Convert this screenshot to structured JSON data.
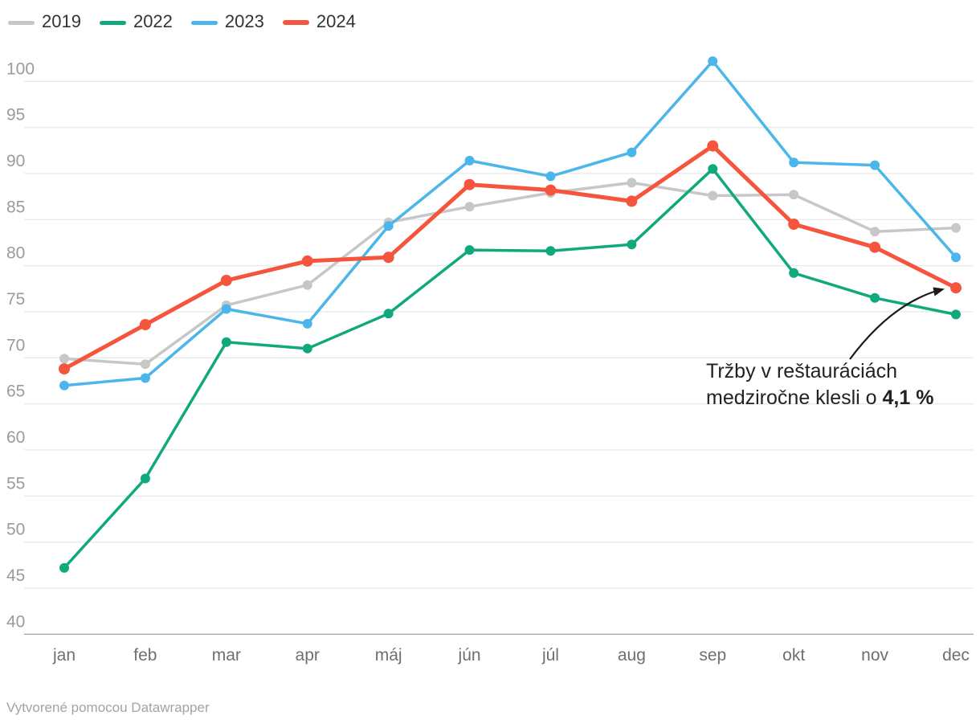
{
  "chart_data": {
    "type": "line",
    "title": "",
    "categories": [
      "jan",
      "feb",
      "mar",
      "apr",
      "máj",
      "jún",
      "júl",
      "aug",
      "sep",
      "okt",
      "nov",
      "dec"
    ],
    "series": [
      {
        "name": "2019",
        "color": "#c7c7c7",
        "line_width": 3.5,
        "dot_radius": 6,
        "values": [
          69.9,
          69.3,
          75.7,
          77.9,
          84.7,
          86.4,
          87.9,
          89.0,
          87.6,
          87.7,
          83.7,
          84.1
        ]
      },
      {
        "name": "2022",
        "color": "#10a97e",
        "line_width": 3.5,
        "dot_radius": 6,
        "values": [
          47.2,
          56.9,
          71.7,
          71.0,
          74.8,
          81.7,
          81.6,
          82.3,
          90.5,
          79.2,
          76.5,
          74.7
        ]
      },
      {
        "name": "2023",
        "color": "#4ab6e9",
        "line_width": 3.5,
        "dot_radius": 6,
        "values": [
          67.0,
          67.8,
          75.3,
          73.7,
          84.3,
          91.4,
          89.7,
          92.3,
          102.2,
          91.2,
          90.9,
          80.9
        ]
      },
      {
        "name": "2024",
        "color": "#f5553d",
        "line_width": 5,
        "dot_radius": 7,
        "values": [
          68.8,
          73.6,
          78.4,
          80.5,
          80.9,
          88.8,
          88.2,
          87.0,
          93.0,
          84.5,
          82.0,
          77.6
        ]
      }
    ],
    "xlabel": "",
    "ylabel": "",
    "ylim": [
      40,
      102.5
    ],
    "yticks": [
      40,
      45,
      50,
      55,
      60,
      65,
      70,
      75,
      80,
      85,
      90,
      95,
      100
    ],
    "grid": true,
    "legend_position": "top-left",
    "annotation": {
      "line1": "Tržby v reštauráciách",
      "line2_prefix": "medziročne klesli o ",
      "line2_bold": "4,1 %",
      "points_to": "2024 dec"
    }
  },
  "legend": {
    "items": [
      {
        "label": "2019"
      },
      {
        "label": "2022"
      },
      {
        "label": "2023"
      },
      {
        "label": "2024"
      }
    ]
  },
  "footer": {
    "credit": "Vytvorené pomocou Datawrapper"
  },
  "colors": {
    "grid": "#eaeaea",
    "baseline": "#a9a9a9",
    "y_tick_text": "#9b9b9b",
    "x_tick_text": "#6f6f6f",
    "annotation_text": "#222222",
    "arrow": "#1a1a1a"
  }
}
